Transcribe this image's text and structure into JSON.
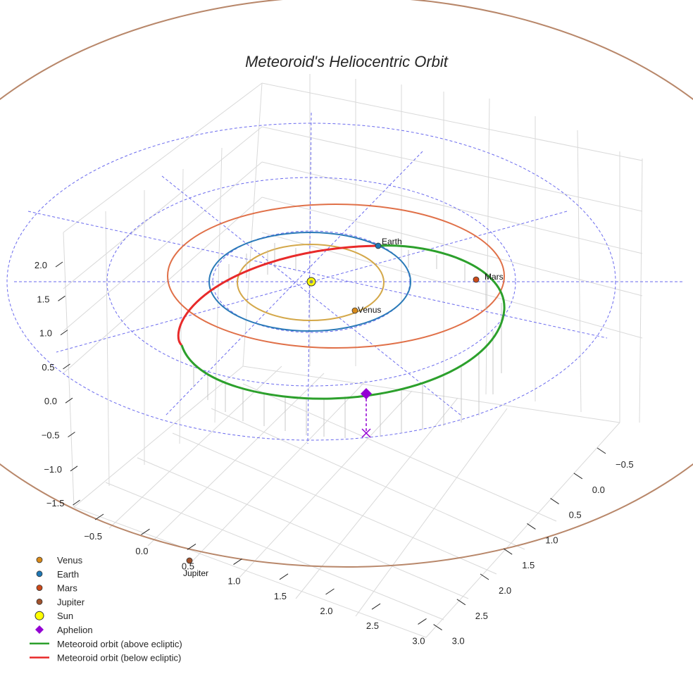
{
  "chart_data": {
    "type": "line3d",
    "title": "Meteoroid's Heliocentric Orbit",
    "grid": true,
    "legend_placement": "lower-left",
    "axes": {
      "x": {
        "range": [
          -0.7,
          3.1
        ],
        "ticks": [
          "−0.5",
          "0.0",
          "0.5",
          "1.0",
          "1.5",
          "2.0",
          "2.5",
          "3.0"
        ]
      },
      "y": {
        "range": [
          -0.7,
          3.1
        ],
        "ticks": [
          "−0.5",
          "0.0",
          "0.5",
          "1.0",
          "1.5",
          "2.0",
          "2.5",
          "3.0"
        ]
      },
      "z": {
        "range": [
          -1.6,
          2.3
        ],
        "ticks": [
          "2.0",
          "1.5",
          "1.0",
          "0.5",
          "0.0",
          "−0.5",
          "−1.0",
          "−1.5"
        ]
      }
    },
    "planets": [
      {
        "name": "Venus",
        "label": "Venus",
        "orbit_radius_au": 0.72,
        "color": "#d49a3a"
      },
      {
        "name": "Earth",
        "label": "Earth",
        "orbit_radius_au": 1.0,
        "color": "#2a7ab8"
      },
      {
        "name": "Mars",
        "label": "Mars",
        "orbit_radius_au": 1.52,
        "color": "#d2542a"
      },
      {
        "name": "Jupiter",
        "label": "Jupiter",
        "orbit_radius_au": 5.2,
        "color": "#9c5a36"
      }
    ],
    "sun": {
      "name": "Sun",
      "color": "#ffff00"
    },
    "aphelion": {
      "name": "Aphelion",
      "color": "#9400d3"
    },
    "orbit_colors": {
      "above": "#2ca02c",
      "below": "#e82a2a",
      "earth_orbit": "#2a7ab8",
      "mars_orbit": "#e07048",
      "venus_orbit": "#d4a84a",
      "jupiter_orbit": "#b8876a",
      "reference_rings": "#6a6aee"
    },
    "legend": [
      {
        "label": "Venus",
        "kind": "dot",
        "color": "#d88a1a"
      },
      {
        "label": "Earth",
        "kind": "dot",
        "color": "#1f77b4"
      },
      {
        "label": "Mars",
        "kind": "dot",
        "color": "#cc4a1a"
      },
      {
        "label": "Jupiter",
        "kind": "dot",
        "color": "#a0522d"
      },
      {
        "label": "Sun",
        "kind": "sun",
        "color": "#ffff00"
      },
      {
        "label": "Aphelion",
        "kind": "diamond",
        "color": "#9400d3"
      },
      {
        "label": "Meteoroid orbit (above ecliptic)",
        "kind": "line",
        "color": "#2ca02c"
      },
      {
        "label": "Meteoroid orbit (below ecliptic)",
        "kind": "line",
        "color": "#e82a2a"
      }
    ]
  }
}
